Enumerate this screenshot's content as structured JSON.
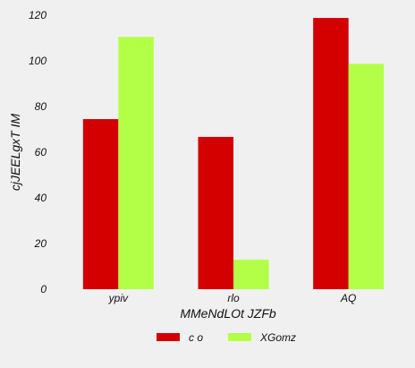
{
  "chart_data": {
    "type": "bar",
    "title": "",
    "xlabel": "MMeNdLOt  JZFb",
    "ylabel": "cjJEELgxT IM",
    "categories": [
      "ypiv",
      "rlo",
      "AQ"
    ],
    "series": [
      {
        "name": "c o",
        "color": "#d40000",
        "values": [
          74.5,
          66.7,
          118.8
        ]
      },
      {
        "name": "XGomz",
        "color": "#b3ff47",
        "values": [
          110.5,
          12.9,
          98.7
        ]
      }
    ],
    "ylim": [
      0,
      120
    ],
    "yticks": [
      0,
      20,
      40,
      60,
      80,
      100,
      120
    ],
    "grid": false,
    "legend_position": "bottom-center",
    "background": "#f0f0f0"
  }
}
